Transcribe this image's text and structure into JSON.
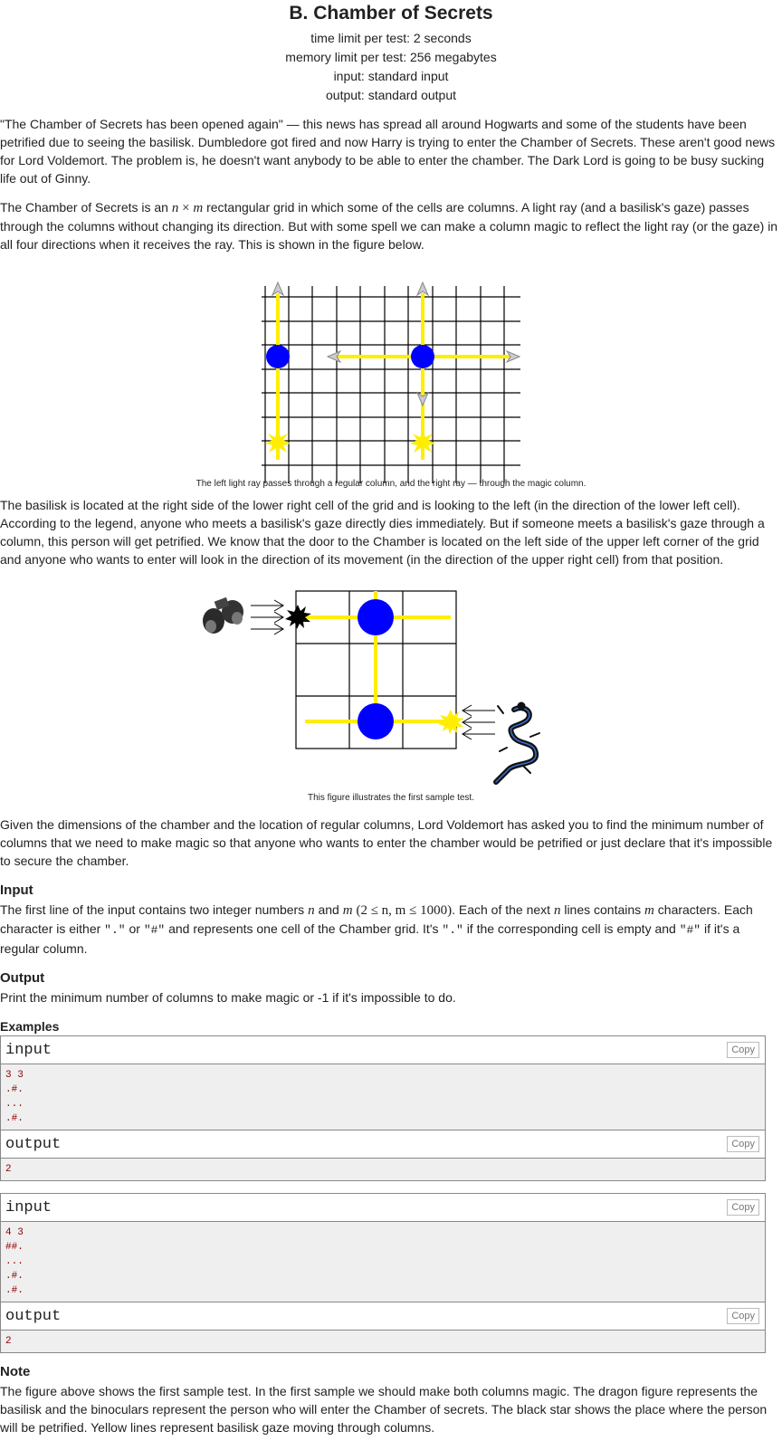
{
  "title": "B. Chamber of Secrets",
  "meta": {
    "time": "time limit per test: 2 seconds",
    "memory": "memory limit per test: 256 megabytes",
    "input": "input: standard input",
    "output": "output: standard output"
  },
  "p1": "\"The Chamber of Secrets has been opened again\" — this news has spread all around Hogwarts and some of the students have been petrified due to seeing the basilisk. Dumbledore got fired and now Harry is trying to enter the Chamber of Secrets. These aren't good news for Lord Voldemort. The problem is, he doesn't want anybody to be able to enter the chamber. The Dark Lord is going to be busy sucking life out of Ginny.",
  "p2": {
    "a": "The Chamber of Secrets is an",
    "n": "n",
    "x": "×",
    "m": "m",
    "b": "rectangular grid in which some of the cells are columns. A light ray (and a basilisk's gaze) passes through the columns without changing its direction. But with some spell we can make a column magic to reflect the light ray (or the gaze) in all four directions when it receives the ray. This is shown in the figure below."
  },
  "caption1": "The left light ray passes through a regular column, and the right ray — through the magic column.",
  "p3": "The basilisk is located at the right side of the lower right cell of the grid and is looking to the left (in the direction of the lower left cell). According to the legend, anyone who meets a basilisk's gaze directly dies immediately. But if someone meets a basilisk's gaze through a column, this person will get petrified. We know that the door to the Chamber is located on the left side of the upper left corner of the grid and anyone who wants to enter will look in the direction of its movement (in the direction of the upper right cell) from that position.",
  "caption2": "This figure illustrates the first sample test.",
  "p4": "Given the dimensions of the chamber and the location of regular columns, Lord Voldemort has asked you to find the minimum number of columns that we need to make magic so that anyone who wants to enter the chamber would be petrified or just declare that it's impossible to secure the chamber.",
  "input_title": "Input",
  "input_text": {
    "a": "The first line of the input contains two integer numbers",
    "n": "n",
    "and": "and",
    "m": "m",
    "constraint": "(2 ≤ n, m ≤ 1000)",
    "b": ". Each of the next",
    "c": "lines contains",
    "d": "characters. Each character is either",
    "dot": "\".\"",
    "or": "or",
    "hash": "\"#\"",
    "e": "and represents one cell of the Chamber grid. It's",
    "f": "if the corresponding cell is empty and",
    "g": "if it's a regular column."
  },
  "output_title": "Output",
  "output_text": "Print the minimum number of columns to make magic or -1 if it's impossible to do.",
  "examples_title": "Examples",
  "copy_label": "Copy",
  "examples": [
    {
      "input_label": "input",
      "input_lines": [
        "3 3",
        ".#.",
        "...",
        ".#."
      ],
      "output_label": "output",
      "output_lines": [
        "2"
      ]
    },
    {
      "input_label": "input",
      "input_lines": [
        "4 3",
        "##.",
        "...",
        ".#.",
        ".#."
      ],
      "output_label": "output",
      "output_lines": [
        "2"
      ]
    }
  ],
  "note_title": "Note",
  "note_text": "The figure above shows the first sample test. In the first sample we should make both columns magic. The dragon figure represents the basilisk and the binoculars represent the person who will enter the Chamber of secrets. The black star shows the place where the person will be petrified. Yellow lines represent basilisk gaze moving through columns.",
  "colors": {
    "ray": "#ffee00",
    "column": "#0000ff",
    "grid": "#000000"
  }
}
